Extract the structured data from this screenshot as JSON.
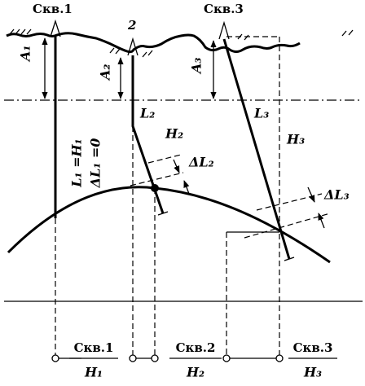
{
  "wells": {
    "w1": "Скв.1",
    "w2": "2",
    "w3": "Скв.3"
  },
  "labels": {
    "a1": "A₁",
    "a2": "A₂",
    "a3": "A₃",
    "l2": "L₂",
    "l3": "L₃",
    "h2": "H₂",
    "h3": "H₃",
    "dl2": "ΔL₂",
    "dl3": "ΔL₃",
    "l1": "L₁ =H₁",
    "dl1": "ΔL₁ =0"
  },
  "legend": [
    {
      "well": "Скв.1",
      "depth": "H₁"
    },
    {
      "well": "Скв.2",
      "depth": "H₂"
    },
    {
      "well": "Скв.3",
      "depth": "H₃"
    }
  ]
}
